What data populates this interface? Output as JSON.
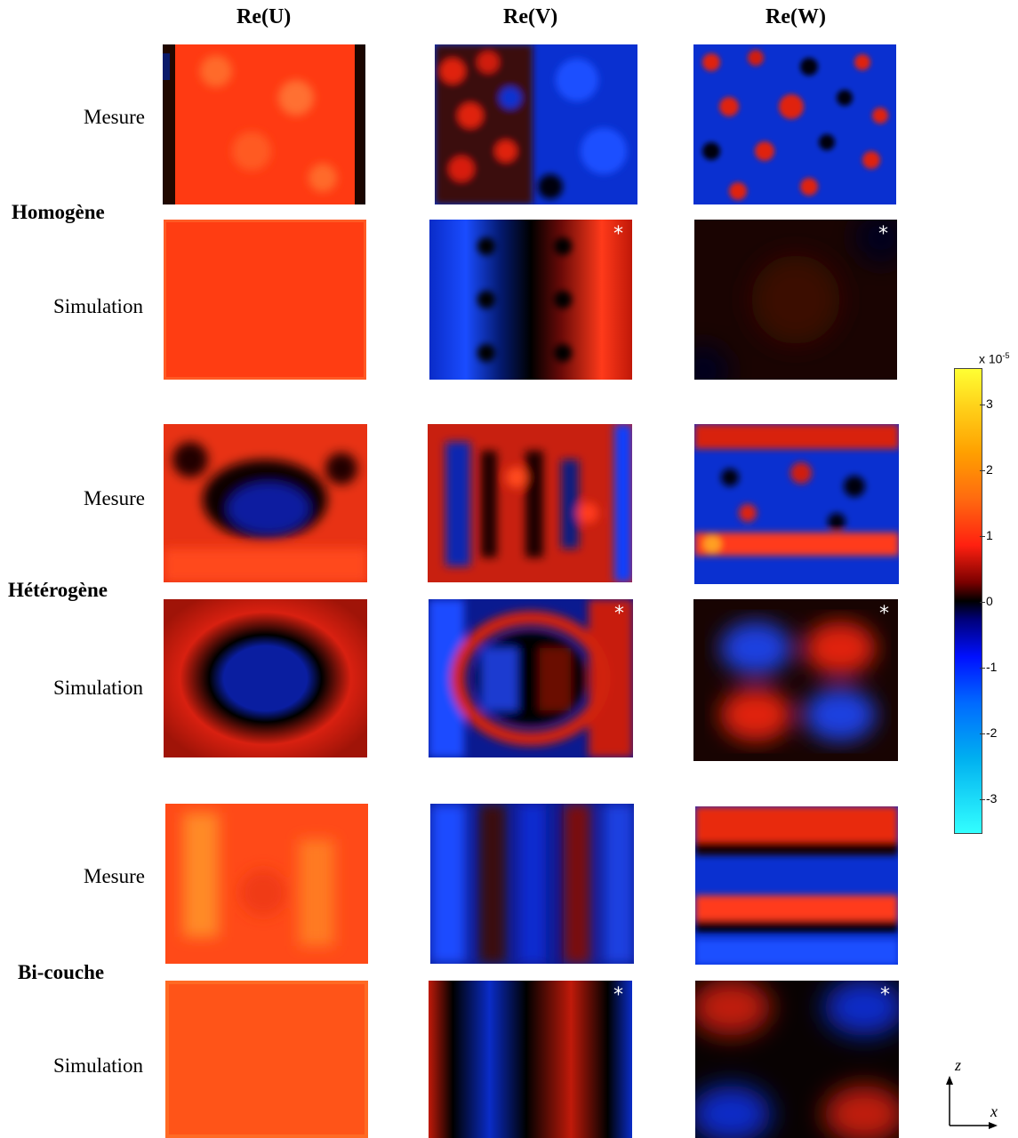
{
  "columns": [
    "Re(U)",
    "Re(V)",
    "Re(W)"
  ],
  "groups": [
    {
      "label": "Homogène"
    },
    {
      "label": "Hétérogène"
    },
    {
      "label": "Bi-couche"
    }
  ],
  "row_labels": {
    "measure": "Mesure",
    "simulation": "Simulation"
  },
  "star_marker": "*",
  "colorbar": {
    "exponent_base": "x 10",
    "exponent": "-5",
    "ticks": [
      "3",
      "2",
      "1",
      "0",
      "-1",
      "-2",
      "-3"
    ],
    "colormap": "jet-like diverging (cyan-blue-black-red-yellow)",
    "range": [
      -3.5,
      3.5
    ]
  },
  "axes": {
    "vertical": "z",
    "horizontal": "x"
  },
  "colors": {
    "red": "#ff3010",
    "blue": "#0a2cd8",
    "black": "#000000",
    "orange": "#ff6a1a"
  }
}
